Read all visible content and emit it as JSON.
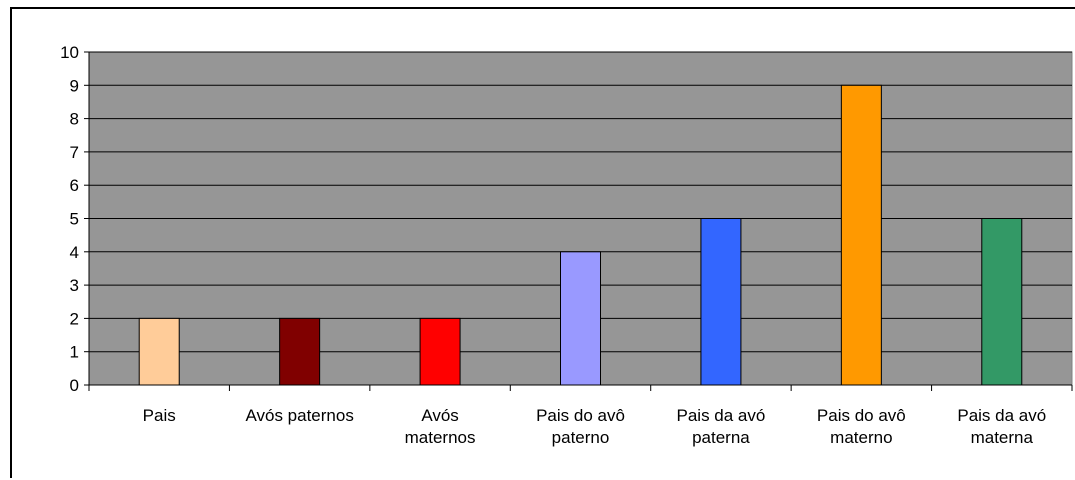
{
  "chart_data": {
    "type": "bar",
    "categories": [
      [
        "Pais"
      ],
      [
        "Avós paternos"
      ],
      [
        "Avós",
        "maternos"
      ],
      [
        "Pais do avô",
        "paterno"
      ],
      [
        "Pais da avó",
        "paterna"
      ],
      [
        "Pais do avô",
        "materno"
      ],
      [
        "Pais da avó",
        "materna"
      ]
    ],
    "values": [
      2,
      2,
      2,
      4,
      5,
      9,
      5
    ],
    "colors": [
      "#FFCC99",
      "#800000",
      "#FF0000",
      "#9999FF",
      "#3366FF",
      "#FF9900",
      "#339966"
    ],
    "title": "",
    "xlabel": "",
    "ylabel": "",
    "ylim": [
      0,
      10
    ],
    "yticks": [
      0,
      1,
      2,
      3,
      4,
      5,
      6,
      7,
      8,
      9,
      10
    ],
    "grid": true,
    "legend": "none",
    "plot_background": "#969696"
  }
}
